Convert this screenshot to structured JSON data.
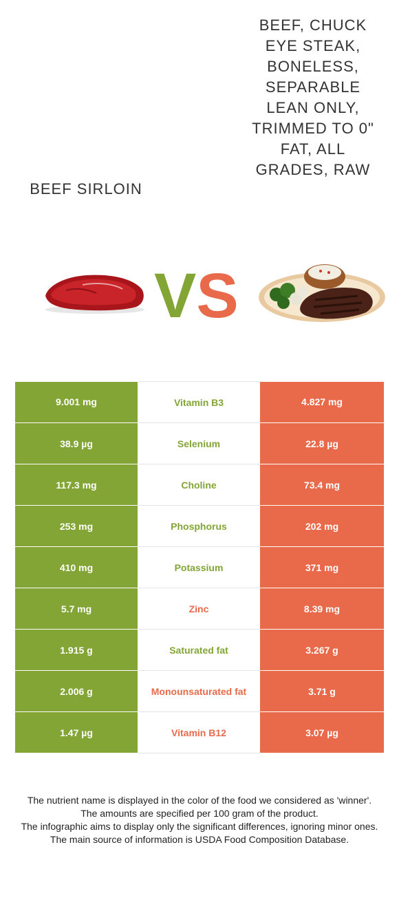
{
  "food_left": {
    "name": "BEEF SIRLOIN",
    "image_icon": "raw-beef-steak-icon",
    "color": "#82a535"
  },
  "food_right": {
    "name": "BEEF, CHUCK EYE STEAK, BONELESS, SEPARABLE LEAN ONLY, TRIMMED TO 0\" FAT, ALL GRADES, RAW",
    "image_icon": "steak-plate-icon",
    "color": "#e86a4a"
  },
  "vs": {
    "v": "V",
    "s": "S"
  },
  "rows": [
    {
      "nutrient": "Vitamin B3",
      "left": "9.001 mg",
      "right": "4.827 mg",
      "winner": "left"
    },
    {
      "nutrient": "Selenium",
      "left": "38.9 µg",
      "right": "22.8 µg",
      "winner": "left"
    },
    {
      "nutrient": "Choline",
      "left": "117.3 mg",
      "right": "73.4 mg",
      "winner": "left"
    },
    {
      "nutrient": "Phosphorus",
      "left": "253 mg",
      "right": "202 mg",
      "winner": "left"
    },
    {
      "nutrient": "Potassium",
      "left": "410 mg",
      "right": "371 mg",
      "winner": "left"
    },
    {
      "nutrient": "Zinc",
      "left": "5.7 mg",
      "right": "8.39 mg",
      "winner": "right"
    },
    {
      "nutrient": "Saturated fat",
      "left": "1.915 g",
      "right": "3.267 g",
      "winner": "left"
    },
    {
      "nutrient": "Monounsaturated fat",
      "left": "2.006 g",
      "right": "3.71 g",
      "winner": "right"
    },
    {
      "nutrient": "Vitamin B12",
      "left": "1.47 µg",
      "right": "3.07 µg",
      "winner": "right"
    }
  ],
  "footer": {
    "line1": "The nutrient name is displayed in the color of the food we considered as 'winner'.",
    "line2": "The amounts are specified per 100 gram of the product.",
    "line3": "The infographic aims to display only the significant differences, ignoring minor ones.",
    "line4": "The main source of information is USDA Food Composition Database."
  }
}
